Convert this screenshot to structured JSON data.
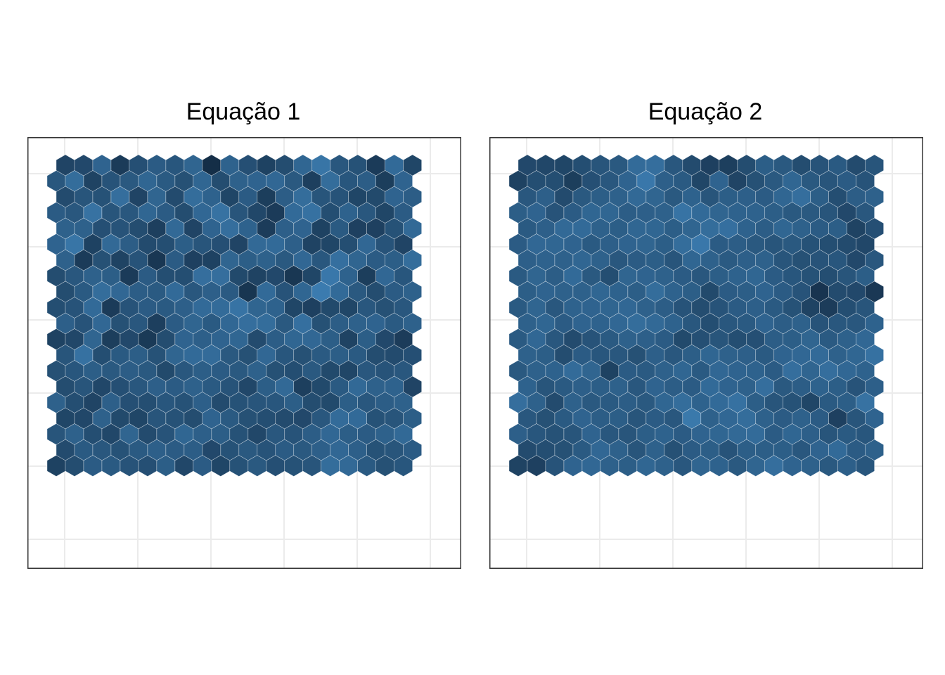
{
  "chart_data": [
    {
      "type": "heatmap",
      "title": "Equação 1",
      "layout": "hexagonal",
      "grid": true,
      "axes_visible": false,
      "nrows": 20,
      "ncols": 20,
      "palette": [
        "#132B43",
        "#56B1F7"
      ],
      "values": [
        [
          0.19,
          0.22,
          0.42,
          0.12,
          0.27,
          0.36,
          0.32,
          0.43,
          0.02,
          0.41,
          0.27,
          0.17,
          0.25,
          0.44,
          0.55,
          0.33,
          0.29,
          0.12,
          0.47,
          0.2
        ],
        [
          0.33,
          0.49,
          0.18,
          0.3,
          0.34,
          0.44,
          0.35,
          0.28,
          0.44,
          0.25,
          0.4,
          0.42,
          0.45,
          0.34,
          0.15,
          0.49,
          0.32,
          0.37,
          0.14,
          0.42
        ],
        [
          0.24,
          0.31,
          0.29,
          0.5,
          0.19,
          0.43,
          0.24,
          0.49,
          0.41,
          0.2,
          0.36,
          0.14,
          0.37,
          0.49,
          0.31,
          0.3,
          0.2,
          0.23,
          0.42,
          0.37
        ],
        [
          0.36,
          0.33,
          0.53,
          0.31,
          0.33,
          0.44,
          0.36,
          0.25,
          0.45,
          0.53,
          0.31,
          0.21,
          0.12,
          0.47,
          0.52,
          0.26,
          0.41,
          0.33,
          0.2,
          0.36
        ],
        [
          0.4,
          0.4,
          0.27,
          0.3,
          0.25,
          0.15,
          0.46,
          0.19,
          0.42,
          0.5,
          0.41,
          0.13,
          0.39,
          0.42,
          0.17,
          0.35,
          0.16,
          0.16,
          0.29,
          0.46
        ],
        [
          0.42,
          0.55,
          0.17,
          0.46,
          0.37,
          0.24,
          0.26,
          0.38,
          0.31,
          0.27,
          0.19,
          0.46,
          0.47,
          0.39,
          0.18,
          0.2,
          0.26,
          0.45,
          0.3,
          0.19
        ],
        [
          0.4,
          0.12,
          0.28,
          0.18,
          0.3,
          0.09,
          0.36,
          0.16,
          0.17,
          0.43,
          0.38,
          0.4,
          0.34,
          0.45,
          0.33,
          0.51,
          0.43,
          0.36,
          0.38,
          0.49
        ],
        [
          0.25,
          0.33,
          0.4,
          0.38,
          0.12,
          0.36,
          0.26,
          0.26,
          0.5,
          0.5,
          0.23,
          0.18,
          0.22,
          0.09,
          0.2,
          0.57,
          0.41,
          0.14,
          0.45,
          0.32
        ],
        [
          0.25,
          0.35,
          0.49,
          0.45,
          0.37,
          0.35,
          0.47,
          0.33,
          0.39,
          0.35,
          0.08,
          0.47,
          0.3,
          0.44,
          0.6,
          0.47,
          0.34,
          0.25,
          0.36,
          0.4
        ],
        [
          0.26,
          0.3,
          0.47,
          0.12,
          0.3,
          0.36,
          0.35,
          0.39,
          0.47,
          0.48,
          0.54,
          0.43,
          0.41,
          0.2,
          0.16,
          0.23,
          0.2,
          0.33,
          0.28,
          0.33
        ],
        [
          0.39,
          0.3,
          0.45,
          0.28,
          0.33,
          0.15,
          0.36,
          0.43,
          0.35,
          0.45,
          0.5,
          0.49,
          0.34,
          0.51,
          0.28,
          0.37,
          0.4,
          0.42,
          0.35,
          0.4
        ],
        [
          0.17,
          0.21,
          0.43,
          0.14,
          0.22,
          0.11,
          0.25,
          0.42,
          0.39,
          0.42,
          0.44,
          0.24,
          0.37,
          0.44,
          0.45,
          0.38,
          0.18,
          0.38,
          0.22,
          0.13
        ],
        [
          0.31,
          0.52,
          0.26,
          0.35,
          0.38,
          0.29,
          0.43,
          0.47,
          0.48,
          0.34,
          0.28,
          0.45,
          0.32,
          0.28,
          0.35,
          0.38,
          0.35,
          0.25,
          0.24,
          0.27
        ],
        [
          0.28,
          0.32,
          0.38,
          0.34,
          0.37,
          0.34,
          0.23,
          0.33,
          0.38,
          0.36,
          0.34,
          0.4,
          0.28,
          0.26,
          0.34,
          0.23,
          0.2,
          0.33,
          0.3,
          0.33
        ],
        [
          0.25,
          0.31,
          0.21,
          0.27,
          0.33,
          0.39,
          0.36,
          0.4,
          0.35,
          0.3,
          0.21,
          0.38,
          0.46,
          0.15,
          0.23,
          0.35,
          0.46,
          0.4,
          0.41,
          0.19
        ],
        [
          0.4,
          0.26,
          0.19,
          0.39,
          0.27,
          0.26,
          0.32,
          0.29,
          0.39,
          0.24,
          0.29,
          0.31,
          0.32,
          0.38,
          0.25,
          0.23,
          0.38,
          0.33,
          0.37,
          0.4
        ],
        [
          0.2,
          0.21,
          0.4,
          0.23,
          0.2,
          0.31,
          0.29,
          0.25,
          0.42,
          0.35,
          0.28,
          0.26,
          0.24,
          0.22,
          0.33,
          0.48,
          0.47,
          0.29,
          0.31,
          0.38
        ],
        [
          0.31,
          0.4,
          0.26,
          0.21,
          0.43,
          0.24,
          0.3,
          0.44,
          0.39,
          0.38,
          0.29,
          0.21,
          0.33,
          0.3,
          0.37,
          0.45,
          0.38,
          0.36,
          0.4,
          0.46
        ],
        [
          0.24,
          0.35,
          0.33,
          0.29,
          0.35,
          0.39,
          0.36,
          0.37,
          0.22,
          0.29,
          0.34,
          0.3,
          0.36,
          0.34,
          0.39,
          0.45,
          0.39,
          0.29,
          0.31,
          0.36
        ],
        [
          0.17,
          0.25,
          0.36,
          0.35,
          0.3,
          0.27,
          0.38,
          0.21,
          0.36,
          0.2,
          0.29,
          0.34,
          0.27,
          0.29,
          0.31,
          0.49,
          0.46,
          0.35,
          0.28,
          0.32
        ]
      ]
    },
    {
      "type": "heatmap",
      "title": "Equação 2",
      "layout": "hexagonal",
      "grid": true,
      "axes_visible": false,
      "nrows": 20,
      "ncols": 20,
      "palette": [
        "#132B43",
        "#56B1F7"
      ],
      "values": [
        [
          0.22,
          0.21,
          0.2,
          0.26,
          0.31,
          0.34,
          0.48,
          0.5,
          0.33,
          0.24,
          0.16,
          0.15,
          0.25,
          0.38,
          0.34,
          0.25,
          0.3,
          0.35,
          0.24,
          0.31
        ],
        [
          0.17,
          0.26,
          0.26,
          0.14,
          0.27,
          0.33,
          0.42,
          0.57,
          0.39,
          0.35,
          0.2,
          0.42,
          0.19,
          0.28,
          0.34,
          0.44,
          0.34,
          0.31,
          0.36,
          0.3
        ],
        [
          0.33,
          0.39,
          0.24,
          0.34,
          0.38,
          0.4,
          0.46,
          0.43,
          0.34,
          0.41,
          0.31,
          0.38,
          0.39,
          0.36,
          0.44,
          0.5,
          0.38,
          0.26,
          0.37,
          0.4
        ],
        [
          0.38,
          0.42,
          0.3,
          0.36,
          0.44,
          0.44,
          0.37,
          0.39,
          0.4,
          0.54,
          0.47,
          0.43,
          0.41,
          0.41,
          0.38,
          0.34,
          0.34,
          0.31,
          0.22,
          0.33
        ],
        [
          0.35,
          0.39,
          0.46,
          0.47,
          0.4,
          0.38,
          0.44,
          0.44,
          0.38,
          0.43,
          0.49,
          0.51,
          0.41,
          0.37,
          0.44,
          0.4,
          0.36,
          0.38,
          0.18,
          0.27
        ],
        [
          0.36,
          0.45,
          0.44,
          0.42,
          0.35,
          0.39,
          0.42,
          0.43,
          0.38,
          0.49,
          0.57,
          0.36,
          0.37,
          0.34,
          0.31,
          0.34,
          0.29,
          0.26,
          0.24,
          0.21
        ],
        [
          0.39,
          0.41,
          0.4,
          0.44,
          0.4,
          0.33,
          0.36,
          0.38,
          0.31,
          0.44,
          0.4,
          0.35,
          0.39,
          0.4,
          0.31,
          0.28,
          0.3,
          0.32,
          0.22,
          0.33
        ],
        [
          0.35,
          0.43,
          0.37,
          0.47,
          0.34,
          0.26,
          0.43,
          0.42,
          0.4,
          0.36,
          0.33,
          0.38,
          0.41,
          0.44,
          0.36,
          0.32,
          0.29,
          0.26,
          0.31,
          0.38
        ],
        [
          0.38,
          0.42,
          0.4,
          0.4,
          0.44,
          0.41,
          0.38,
          0.49,
          0.41,
          0.38,
          0.23,
          0.36,
          0.38,
          0.42,
          0.36,
          0.3,
          0.07,
          0.24,
          0.22,
          0.1
        ],
        [
          0.35,
          0.43,
          0.33,
          0.41,
          0.42,
          0.43,
          0.45,
          0.4,
          0.37,
          0.3,
          0.25,
          0.3,
          0.36,
          0.39,
          0.35,
          0.29,
          0.18,
          0.13,
          0.26,
          0.31
        ],
        [
          0.4,
          0.44,
          0.36,
          0.42,
          0.41,
          0.45,
          0.49,
          0.46,
          0.41,
          0.33,
          0.26,
          0.33,
          0.35,
          0.42,
          0.37,
          0.4,
          0.3,
          0.33,
          0.33,
          0.41
        ],
        [
          0.35,
          0.45,
          0.33,
          0.24,
          0.3,
          0.35,
          0.4,
          0.39,
          0.36,
          0.23,
          0.27,
          0.31,
          0.26,
          0.27,
          0.37,
          0.38,
          0.43,
          0.35,
          0.4,
          0.45
        ],
        [
          0.4,
          0.38,
          0.25,
          0.36,
          0.32,
          0.33,
          0.28,
          0.39,
          0.33,
          0.38,
          0.44,
          0.4,
          0.39,
          0.35,
          0.42,
          0.45,
          0.47,
          0.4,
          0.44,
          0.52
        ],
        [
          0.34,
          0.4,
          0.41,
          0.48,
          0.43,
          0.17,
          0.36,
          0.35,
          0.4,
          0.44,
          0.35,
          0.45,
          0.42,
          0.41,
          0.36,
          0.5,
          0.43,
          0.5,
          0.45,
          0.41
        ],
        [
          0.41,
          0.31,
          0.35,
          0.39,
          0.38,
          0.4,
          0.33,
          0.42,
          0.37,
          0.36,
          0.47,
          0.42,
          0.4,
          0.5,
          0.34,
          0.37,
          0.41,
          0.38,
          0.3,
          0.39
        ],
        [
          0.5,
          0.4,
          0.24,
          0.4,
          0.34,
          0.35,
          0.37,
          0.34,
          0.44,
          0.49,
          0.41,
          0.47,
          0.52,
          0.38,
          0.31,
          0.29,
          0.2,
          0.35,
          0.38,
          0.53
        ],
        [
          0.33,
          0.28,
          0.35,
          0.42,
          0.37,
          0.38,
          0.31,
          0.36,
          0.33,
          0.58,
          0.4,
          0.45,
          0.49,
          0.4,
          0.36,
          0.4,
          0.36,
          0.16,
          0.31,
          0.42
        ],
        [
          0.39,
          0.32,
          0.29,
          0.31,
          0.42,
          0.33,
          0.31,
          0.38,
          0.41,
          0.36,
          0.42,
          0.44,
          0.46,
          0.48,
          0.36,
          0.44,
          0.39,
          0.31,
          0.35,
          0.32
        ],
        [
          0.24,
          0.26,
          0.28,
          0.35,
          0.45,
          0.4,
          0.31,
          0.4,
          0.28,
          0.36,
          0.38,
          0.3,
          0.38,
          0.38,
          0.38,
          0.33,
          0.42,
          0.47,
          0.36,
          0.4
        ],
        [
          0.18,
          0.16,
          0.3,
          0.42,
          0.45,
          0.4,
          0.38,
          0.44,
          0.4,
          0.33,
          0.43,
          0.41,
          0.34,
          0.43,
          0.5,
          0.42,
          0.4,
          0.34,
          0.39,
          0.32
        ]
      ]
    }
  ]
}
